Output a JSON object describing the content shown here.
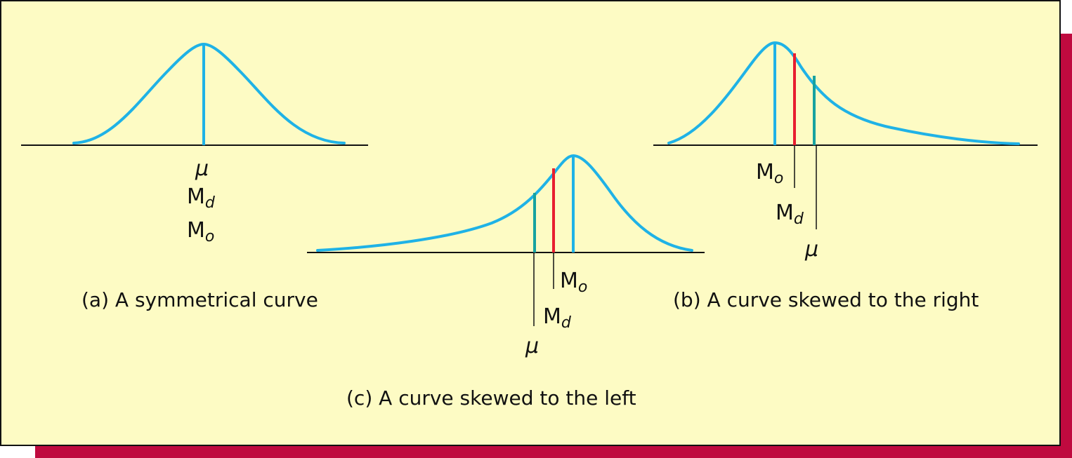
{
  "panel_a": {
    "caption": "(a) A symmetrical curve",
    "label_mu": "μ",
    "label_md": "M",
    "label_md_sub": "d",
    "label_mo": "M",
    "label_mo_sub": "o"
  },
  "panel_b": {
    "caption": "(b) A curve skewed to the right",
    "label_mo": "M",
    "label_mo_sub": "o",
    "label_md": "M",
    "label_md_sub": "d",
    "label_mu": "μ"
  },
  "panel_c": {
    "caption": "(c) A curve skewed to the left",
    "label_mo": "M",
    "label_mo_sub": "o",
    "label_md": "M",
    "label_md_sub": "d",
    "label_mu": "μ"
  },
  "colors": {
    "background": "#fdfbc4",
    "shadow": "#bf0a3f",
    "curve": "#1fb2e6",
    "median_line": "#e81e2f",
    "mean_line": "#17a2a0"
  }
}
